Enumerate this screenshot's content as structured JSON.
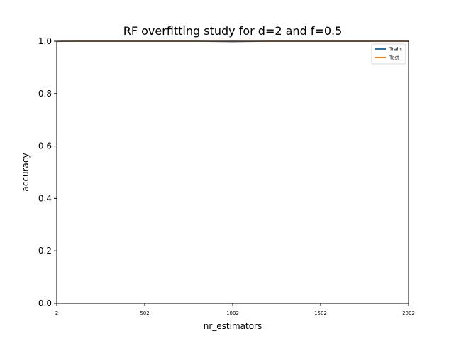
{
  "chart_data": {
    "type": "line",
    "title": "RF overfitting study for d=2 and f=0.5",
    "xlabel": "nr_estimators",
    "ylabel": "accuracy",
    "xlim": [
      2,
      2002
    ],
    "ylim": [
      0.0,
      1.0
    ],
    "xticks": [
      "2",
      "502",
      "1002",
      "1502",
      "2002"
    ],
    "yticks": [
      "0.0",
      "0.2",
      "0.4",
      "0.6",
      "0.8",
      "1.0"
    ],
    "grid": false,
    "legend_position": "top-right",
    "series": [
      {
        "name": "Train",
        "color": "#1f77b4",
        "x": [
          2,
          102,
          202,
          302,
          402,
          502,
          602,
          702,
          802,
          902,
          1002,
          1102,
          1202,
          1302,
          1402,
          1502,
          1602,
          1702,
          1802,
          1902,
          2002
        ],
        "values": [
          0.999,
          1.0,
          1.0,
          1.0,
          1.0,
          1.0,
          1.0,
          1.0,
          1.0,
          0.999,
          0.998,
          0.999,
          1.0,
          1.0,
          1.0,
          1.0,
          1.0,
          1.0,
          1.0,
          1.0,
          1.0
        ]
      },
      {
        "name": "Test",
        "color": "#ff7f0e",
        "x": [
          2,
          102,
          202,
          302,
          402,
          502,
          602,
          702,
          802,
          902,
          1002,
          1102,
          1202,
          1302,
          1402,
          1502,
          1602,
          1702,
          1802,
          1902,
          2002
        ],
        "values": [
          1.0,
          1.0,
          1.0,
          1.0,
          1.0,
          1.0,
          1.0,
          1.0,
          1.0,
          1.0,
          1.0,
          1.0,
          1.0,
          1.0,
          1.0,
          1.0,
          1.0,
          1.0,
          1.0,
          1.0,
          1.0
        ]
      }
    ]
  }
}
